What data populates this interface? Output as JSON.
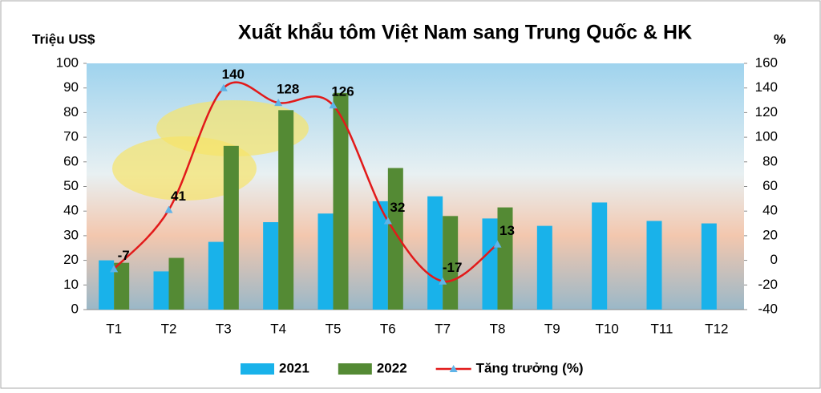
{
  "chart_data": {
    "type": "bar",
    "title": "Xuất khẩu tôm Việt Nam sang Trung Quốc & HK",
    "y_label": "Triệu US$",
    "y2_label": "%",
    "categories": [
      "T1",
      "T2",
      "T3",
      "T4",
      "T5",
      "T6",
      "T7",
      "T8",
      "T9",
      "T10",
      "T11",
      "T12"
    ],
    "series": [
      {
        "name": "2021",
        "type": "bar",
        "color": "#19b2ea",
        "values": [
          20,
          15.5,
          27.5,
          35.5,
          39,
          44,
          46,
          37,
          34,
          43.5,
          36,
          35
        ]
      },
      {
        "name": "2022",
        "type": "bar",
        "color": "#548a34",
        "values": [
          19,
          21,
          66.5,
          81,
          88,
          57.5,
          38,
          41.5,
          null,
          null,
          null,
          null
        ]
      },
      {
        "name": "Tăng trưởng (%)",
        "type": "line",
        "axis": "y2",
        "color": "#e21a1a",
        "marker_color": "#5fb4e8",
        "values": [
          -7,
          41,
          140,
          128,
          126,
          32,
          -17,
          13,
          null,
          null,
          null,
          null
        ]
      }
    ],
    "ylim": [
      0,
      100
    ],
    "yticks": [
      0,
      10,
      20,
      30,
      40,
      50,
      60,
      70,
      80,
      90,
      100
    ],
    "y2lim": [
      -40,
      160
    ],
    "y2ticks": [
      -40,
      -20,
      0,
      20,
      40,
      60,
      80,
      100,
      120,
      140,
      160
    ],
    "legend": "bottom"
  }
}
